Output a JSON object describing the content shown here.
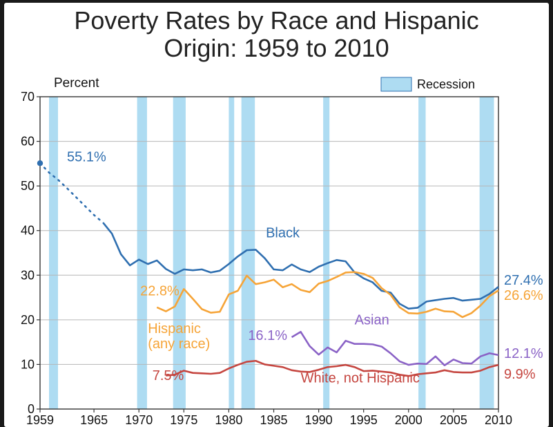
{
  "title_line1": "Poverty Rates by Race and Hispanic",
  "title_line2": "Origin: 1959 to 2010",
  "y_axis_title": "Percent",
  "legend_label": "Recession",
  "chart": {
    "type": "line",
    "background_color": "#ffffff",
    "plot_border_color": "#333333",
    "grid_color": "#b6b6b6",
    "grid_stroke_width": 1,
    "axis_stroke_width": 1.4,
    "xlim": [
      1959,
      2010
    ],
    "ylim": [
      0,
      70
    ],
    "ytick_step": 10,
    "yticks": [
      0,
      10,
      20,
      30,
      40,
      50,
      60,
      70
    ],
    "xticks": [
      1959,
      1965,
      1970,
      1975,
      1980,
      1985,
      1990,
      1995,
      2000,
      2005,
      2010
    ],
    "recession_color": "#aedcf2",
    "recessions": [
      [
        1960,
        1961
      ],
      [
        1969.8,
        1970.9
      ],
      [
        1973.8,
        1975.2
      ],
      [
        1980,
        1980.6
      ],
      [
        1981.4,
        1982.9
      ],
      [
        1990.5,
        1991.2
      ],
      [
        2001.1,
        2001.9
      ],
      [
        2007.9,
        2009.5
      ]
    ],
    "series": {
      "black": {
        "label": "Black",
        "color": "#2f6fb0",
        "stroke_width": 2.6,
        "start_callout": "55.1%",
        "end_label": "27.4%",
        "label_pos": {
          "x": 1986,
          "y": 38.5
        },
        "dotted_until_index": 7,
        "years": [
          1959,
          1960,
          1961,
          1962,
          1963,
          1964,
          1965,
          1966,
          1967,
          1968,
          1969,
          1970,
          1971,
          1972,
          1973,
          1974,
          1975,
          1976,
          1977,
          1978,
          1979,
          1980,
          1981,
          1982,
          1983,
          1984,
          1985,
          1986,
          1987,
          1988,
          1989,
          1990,
          1991,
          1992,
          1993,
          1994,
          1995,
          1996,
          1997,
          1998,
          1999,
          2000,
          2001,
          2002,
          2003,
          2004,
          2005,
          2006,
          2007,
          2008,
          2009,
          2010
        ],
        "values": [
          55.1,
          53.0,
          51.4,
          49.5,
          47.5,
          45.5,
          43.5,
          41.8,
          39.3,
          34.7,
          32.2,
          33.5,
          32.5,
          33.3,
          31.4,
          30.3,
          31.3,
          31.1,
          31.3,
          30.6,
          31.0,
          32.5,
          34.2,
          35.6,
          35.7,
          33.8,
          31.3,
          31.1,
          32.4,
          31.3,
          30.7,
          31.9,
          32.7,
          33.4,
          33.1,
          30.6,
          29.3,
          28.4,
          26.5,
          26.1,
          23.6,
          22.5,
          22.7,
          24.1,
          24.4,
          24.7,
          24.9,
          24.3,
          24.5,
          24.7,
          25.8,
          27.4
        ]
      },
      "hispanic": {
        "label_line1": "Hispanic",
        "label_line2": "(any race)",
        "color": "#f6a437",
        "stroke_width": 2.6,
        "start_callout": "22.8%",
        "end_label": "26.6%",
        "label_pos": {
          "x": 1971,
          "y": 17
        },
        "years": [
          1972,
          1973,
          1974,
          1975,
          1976,
          1977,
          1978,
          1979,
          1980,
          1981,
          1982,
          1983,
          1984,
          1985,
          1986,
          1987,
          1988,
          1989,
          1990,
          1991,
          1992,
          1993,
          1994,
          1995,
          1996,
          1997,
          1998,
          1999,
          2000,
          2001,
          2002,
          2003,
          2004,
          2005,
          2006,
          2007,
          2008,
          2009,
          2010
        ],
        "values": [
          22.8,
          21.9,
          23.0,
          26.9,
          24.7,
          22.4,
          21.6,
          21.8,
          25.7,
          26.5,
          29.9,
          28.0,
          28.4,
          29.0,
          27.3,
          28.0,
          26.7,
          26.2,
          28.1,
          28.7,
          29.6,
          30.6,
          30.7,
          30.3,
          29.4,
          27.1,
          25.6,
          22.8,
          21.5,
          21.4,
          21.8,
          22.5,
          21.9,
          21.8,
          20.6,
          21.5,
          23.2,
          25.3,
          26.6
        ]
      },
      "asian": {
        "label": "Asian",
        "color": "#8a62c6",
        "stroke_width": 2.6,
        "start_callout": "16.1%",
        "end_label": "12.1%",
        "label_pos": {
          "x": 1994,
          "y": 19
        },
        "years": [
          1987,
          1988,
          1989,
          1990,
          1991,
          1992,
          1993,
          1994,
          1995,
          1996,
          1997,
          1998,
          1999,
          2000,
          2001,
          2002,
          2003,
          2004,
          2005,
          2006,
          2007,
          2008,
          2009,
          2010
        ],
        "values": [
          16.1,
          17.3,
          14.1,
          12.2,
          13.8,
          12.7,
          15.3,
          14.6,
          14.6,
          14.5,
          14.0,
          12.5,
          10.7,
          9.9,
          10.2,
          10.1,
          11.8,
          9.8,
          11.1,
          10.3,
          10.2,
          11.8,
          12.5,
          12.1
        ]
      },
      "white": {
        "label": "White, not Hispanic",
        "color": "#c5453f",
        "stroke_width": 2.6,
        "start_callout": "7.5%",
        "end_label": "9.9%",
        "label_pos": {
          "x": 1988,
          "y": 6
        },
        "years": [
          1973,
          1974,
          1975,
          1976,
          1977,
          1978,
          1979,
          1980,
          1981,
          1982,
          1983,
          1984,
          1985,
          1986,
          1987,
          1988,
          1989,
          1990,
          1991,
          1992,
          1993,
          1994,
          1995,
          1996,
          1997,
          1998,
          1999,
          2000,
          2001,
          2002,
          2003,
          2004,
          2005,
          2006,
          2007,
          2008,
          2009,
          2010
        ],
        "values": [
          7.5,
          7.7,
          8.6,
          8.1,
          8.0,
          7.9,
          8.1,
          9.1,
          9.9,
          10.6,
          10.8,
          10.0,
          9.7,
          9.4,
          8.7,
          8.4,
          8.3,
          8.8,
          9.4,
          9.6,
          9.9,
          9.4,
          8.5,
          8.6,
          8.4,
          8.2,
          7.7,
          7.4,
          7.8,
          8.0,
          8.2,
          8.7,
          8.3,
          8.2,
          8.2,
          8.6,
          9.4,
          9.9
        ]
      }
    }
  }
}
